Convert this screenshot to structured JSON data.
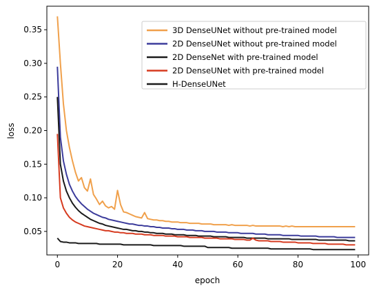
{
  "chart_data": {
    "type": "line",
    "title": "",
    "xlabel": "epoch",
    "ylabel": "loss",
    "xlim": [
      -3.5,
      103.5
    ],
    "ylim": [
      0.015,
      0.385
    ],
    "xticks": [
      0,
      20,
      40,
      60,
      80,
      100
    ],
    "yticks": [
      0.05,
      0.1,
      0.15,
      0.2,
      0.25,
      0.3,
      0.35
    ],
    "ytick_labels": [
      "0.05",
      "0.10",
      "0.15",
      "0.20",
      "0.25",
      "0.30",
      "0.35"
    ],
    "grid": false,
    "legend_position": "top-right",
    "x": [
      0,
      1,
      2,
      3,
      4,
      5,
      6,
      7,
      8,
      9,
      10,
      11,
      12,
      13,
      14,
      15,
      16,
      17,
      18,
      19,
      20,
      21,
      22,
      23,
      24,
      25,
      26,
      27,
      28,
      29,
      30,
      31,
      32,
      33,
      34,
      35,
      36,
      37,
      38,
      39,
      40,
      41,
      42,
      43,
      44,
      45,
      46,
      47,
      48,
      49,
      50,
      51,
      52,
      53,
      54,
      55,
      56,
      57,
      58,
      59,
      60,
      61,
      62,
      63,
      64,
      65,
      66,
      67,
      68,
      69,
      70,
      71,
      72,
      73,
      74,
      75,
      76,
      77,
      78,
      79,
      80,
      81,
      82,
      83,
      84,
      85,
      86,
      87,
      88,
      89,
      90,
      91,
      92,
      93,
      94,
      95,
      96,
      97,
      98,
      99
    ],
    "series": [
      {
        "name": "3D DenseUNet without pre-trained model",
        "color": "#f0a04b",
        "values": [
          0.37,
          0.3,
          0.24,
          0.2,
          0.175,
          0.155,
          0.138,
          0.125,
          0.13,
          0.115,
          0.11,
          0.128,
          0.105,
          0.098,
          0.09,
          0.095,
          0.088,
          0.085,
          0.087,
          0.083,
          0.111,
          0.09,
          0.079,
          0.078,
          0.076,
          0.074,
          0.072,
          0.071,
          0.07,
          0.078,
          0.069,
          0.068,
          0.067,
          0.067,
          0.066,
          0.066,
          0.065,
          0.065,
          0.064,
          0.064,
          0.064,
          0.063,
          0.063,
          0.063,
          0.062,
          0.062,
          0.062,
          0.062,
          0.061,
          0.061,
          0.061,
          0.061,
          0.06,
          0.06,
          0.06,
          0.06,
          0.06,
          0.059,
          0.06,
          0.059,
          0.059,
          0.059,
          0.059,
          0.059,
          0.058,
          0.059,
          0.058,
          0.058,
          0.058,
          0.058,
          0.058,
          0.058,
          0.058,
          0.058,
          0.058,
          0.057,
          0.058,
          0.057,
          0.058,
          0.057,
          0.057,
          0.057,
          0.057,
          0.057,
          0.057,
          0.057,
          0.057,
          0.057,
          0.057,
          0.057,
          0.057,
          0.057,
          0.057,
          0.057,
          0.057,
          0.057,
          0.057,
          0.057,
          0.057,
          0.057
        ]
      },
      {
        "name": "2D DenseUNet without pre-trained model",
        "color": "#3b3b9b",
        "values": [
          0.295,
          0.19,
          0.155,
          0.135,
          0.12,
          0.11,
          0.102,
          0.096,
          0.091,
          0.087,
          0.083,
          0.08,
          0.077,
          0.075,
          0.073,
          0.071,
          0.07,
          0.068,
          0.067,
          0.066,
          0.065,
          0.064,
          0.063,
          0.062,
          0.061,
          0.061,
          0.06,
          0.059,
          0.059,
          0.058,
          0.058,
          0.057,
          0.057,
          0.056,
          0.056,
          0.055,
          0.055,
          0.055,
          0.054,
          0.054,
          0.053,
          0.053,
          0.053,
          0.052,
          0.052,
          0.052,
          0.051,
          0.051,
          0.051,
          0.05,
          0.05,
          0.05,
          0.05,
          0.049,
          0.049,
          0.049,
          0.049,
          0.048,
          0.048,
          0.048,
          0.048,
          0.047,
          0.047,
          0.047,
          0.047,
          0.047,
          0.046,
          0.046,
          0.046,
          0.046,
          0.045,
          0.045,
          0.045,
          0.045,
          0.045,
          0.044,
          0.044,
          0.044,
          0.044,
          0.044,
          0.044,
          0.043,
          0.043,
          0.043,
          0.043,
          0.043,
          0.043,
          0.042,
          0.042,
          0.042,
          0.042,
          0.042,
          0.042,
          0.041,
          0.041,
          0.041,
          0.041,
          0.041,
          0.041,
          0.041
        ]
      },
      {
        "name": "2D DenseNet with pre-trained model",
        "color": "#1a1a1a",
        "values": [
          0.25,
          0.15,
          0.125,
          0.11,
          0.1,
          0.092,
          0.086,
          0.081,
          0.077,
          0.074,
          0.071,
          0.068,
          0.066,
          0.064,
          0.062,
          0.061,
          0.059,
          0.058,
          0.057,
          0.056,
          0.055,
          0.054,
          0.053,
          0.053,
          0.052,
          0.051,
          0.051,
          0.05,
          0.05,
          0.049,
          0.049,
          0.048,
          0.048,
          0.047,
          0.047,
          0.047,
          0.046,
          0.046,
          0.046,
          0.045,
          0.045,
          0.045,
          0.045,
          0.044,
          0.044,
          0.044,
          0.044,
          0.043,
          0.043,
          0.043,
          0.043,
          0.043,
          0.042,
          0.042,
          0.042,
          0.042,
          0.042,
          0.041,
          0.041,
          0.041,
          0.041,
          0.041,
          0.041,
          0.04,
          0.04,
          0.04,
          0.04,
          0.04,
          0.04,
          0.04,
          0.039,
          0.039,
          0.039,
          0.039,
          0.039,
          0.039,
          0.039,
          0.039,
          0.038,
          0.038,
          0.038,
          0.038,
          0.038,
          0.038,
          0.038,
          0.038,
          0.038,
          0.037,
          0.037,
          0.037,
          0.037,
          0.037,
          0.037,
          0.037,
          0.037,
          0.037,
          0.037,
          0.036,
          0.036,
          0.036
        ]
      },
      {
        "name": "2D DenseUNet with pre-trained model",
        "color": "#d63a1f",
        "values": [
          0.195,
          0.1,
          0.085,
          0.077,
          0.071,
          0.067,
          0.064,
          0.062,
          0.06,
          0.058,
          0.057,
          0.056,
          0.055,
          0.054,
          0.053,
          0.052,
          0.051,
          0.051,
          0.05,
          0.049,
          0.049,
          0.048,
          0.048,
          0.047,
          0.047,
          0.047,
          0.046,
          0.046,
          0.046,
          0.045,
          0.045,
          0.045,
          0.044,
          0.044,
          0.044,
          0.044,
          0.043,
          0.043,
          0.043,
          0.043,
          0.042,
          0.042,
          0.042,
          0.042,
          0.041,
          0.041,
          0.041,
          0.041,
          0.041,
          0.04,
          0.04,
          0.04,
          0.04,
          0.04,
          0.039,
          0.039,
          0.039,
          0.039,
          0.039,
          0.038,
          0.038,
          0.038,
          0.038,
          0.037,
          0.037,
          0.04,
          0.037,
          0.036,
          0.036,
          0.036,
          0.036,
          0.035,
          0.035,
          0.035,
          0.035,
          0.034,
          0.034,
          0.034,
          0.034,
          0.034,
          0.033,
          0.033,
          0.033,
          0.033,
          0.033,
          0.032,
          0.032,
          0.032,
          0.032,
          0.032,
          0.031,
          0.031,
          0.031,
          0.031,
          0.031,
          0.031,
          0.03,
          0.03,
          0.03,
          0.03
        ]
      },
      {
        "name": "H-DenseUNet",
        "color": "#1a1a1a",
        "values": [
          0.04,
          0.035,
          0.034,
          0.034,
          0.033,
          0.033,
          0.033,
          0.032,
          0.032,
          0.032,
          0.032,
          0.032,
          0.032,
          0.032,
          0.031,
          0.031,
          0.031,
          0.031,
          0.031,
          0.031,
          0.031,
          0.031,
          0.03,
          0.03,
          0.03,
          0.03,
          0.03,
          0.03,
          0.03,
          0.03,
          0.03,
          0.03,
          0.029,
          0.029,
          0.029,
          0.029,
          0.029,
          0.029,
          0.029,
          0.029,
          0.029,
          0.029,
          0.028,
          0.028,
          0.028,
          0.028,
          0.028,
          0.028,
          0.028,
          0.028,
          0.026,
          0.026,
          0.026,
          0.026,
          0.026,
          0.026,
          0.026,
          0.026,
          0.025,
          0.025,
          0.025,
          0.025,
          0.025,
          0.025,
          0.025,
          0.025,
          0.025,
          0.025,
          0.025,
          0.025,
          0.025,
          0.024,
          0.024,
          0.024,
          0.024,
          0.024,
          0.024,
          0.024,
          0.024,
          0.024,
          0.024,
          0.024,
          0.024,
          0.024,
          0.024,
          0.023,
          0.023,
          0.023,
          0.023,
          0.023,
          0.023,
          0.023,
          0.023,
          0.023,
          0.023,
          0.023,
          0.023,
          0.023,
          0.023,
          0.023
        ]
      }
    ]
  }
}
